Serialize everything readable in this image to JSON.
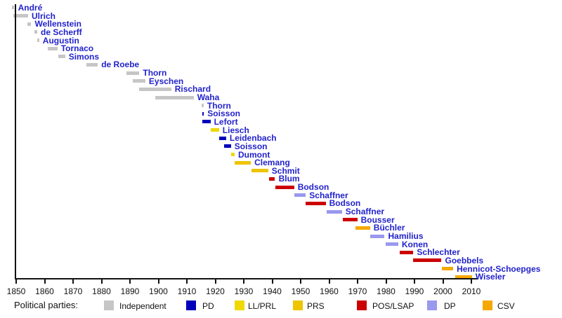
{
  "chart_data": {
    "type": "timeline",
    "title": "",
    "legend_title": "Political parties:",
    "x_axis": {
      "min": 1848,
      "max": 2011,
      "ticks": [
        1850,
        1860,
        1870,
        1880,
        1890,
        1900,
        1910,
        1920,
        1930,
        1940,
        1950,
        1960,
        1970,
        1980,
        1990,
        2000,
        2010
      ],
      "grid": false
    },
    "label_color": "#2222cc",
    "parties": {
      "ind": {
        "label": "Independent",
        "color": "#c6c6c6"
      },
      "pd": {
        "label": "PD",
        "color": "#0000bb"
      },
      "ll_prl": {
        "label": "LL/PRL",
        "color": "#efd900"
      },
      "prs": {
        "label": "PRS",
        "color": "#efc400"
      },
      "pos_lsap": {
        "label": "POS/LSAP",
        "color": "#cc0000"
      },
      "dp": {
        "label": "DP",
        "color": "#9999ee"
      },
      "csv": {
        "label": "CSV",
        "color": "#f5a800"
      }
    },
    "legend_order": [
      "ind",
      "pd",
      "ll_prl",
      "prs",
      "pos_lsap",
      "dp",
      "csv"
    ],
    "rows": [
      {
        "name": "André",
        "party": "ind",
        "start": 1848.6,
        "end": 1849.4
      },
      {
        "name": "Ulrich",
        "party": "ind",
        "start": 1848.9,
        "end": 1854.2
      },
      {
        "name": "Wellenstein",
        "party": "ind",
        "start": 1854.0,
        "end": 1855.3
      },
      {
        "name": "de Scherff",
        "party": "ind",
        "start": 1856.4,
        "end": 1857.4
      },
      {
        "name": "Augustin",
        "party": "ind",
        "start": 1857.4,
        "end": 1858.1
      },
      {
        "name": "Tornaco",
        "party": "ind",
        "start": 1861.1,
        "end": 1864.5
      },
      {
        "name": "Simons",
        "party": "ind",
        "start": 1864.9,
        "end": 1867.2
      },
      {
        "name": "de Roebe",
        "party": "ind",
        "start": 1874.6,
        "end": 1878.7
      },
      {
        "name": "Thorn",
        "party": "ind",
        "start": 1888.8,
        "end": 1893.3
      },
      {
        "name": "Eyschen",
        "party": "ind",
        "start": 1891.0,
        "end": 1895.4
      },
      {
        "name": "Rischard",
        "party": "ind",
        "start": 1893.3,
        "end": 1904.5
      },
      {
        "name": "Waha",
        "party": "ind",
        "start": 1899.0,
        "end": 1912.4
      },
      {
        "name": "Thorn",
        "party": "ind",
        "start": 1915.1,
        "end": 1915.9
      },
      {
        "name": "Soisson",
        "party": "pd",
        "start": 1915.3,
        "end": 1916.0
      },
      {
        "name": "Lefort",
        "party": "pd",
        "start": 1915.3,
        "end": 1918.3
      },
      {
        "name": "Liesch",
        "party": "ll_prl",
        "start": 1918.3,
        "end": 1921.3
      },
      {
        "name": "Leidenbach",
        "party": "pd",
        "start": 1921.3,
        "end": 1923.8
      },
      {
        "name": "Soisson",
        "party": "pd",
        "start": 1923.0,
        "end": 1925.5
      },
      {
        "name": "Dumont",
        "party": "ll_prl",
        "start": 1925.5,
        "end": 1926.8
      },
      {
        "name": "Clemang",
        "party": "prs",
        "start": 1926.8,
        "end": 1932.5
      },
      {
        "name": "Schmit",
        "party": "prs",
        "start": 1932.6,
        "end": 1938.6
      },
      {
        "name": "Blum",
        "party": "pos_lsap",
        "start": 1938.8,
        "end": 1941.0
      },
      {
        "name": "Bodson",
        "party": "pos_lsap",
        "start": 1941.0,
        "end": 1947.7
      },
      {
        "name": "Schaffner",
        "party": "dp",
        "start": 1947.7,
        "end": 1951.8
      },
      {
        "name": "Bodson",
        "party": "pos_lsap",
        "start": 1951.8,
        "end": 1958.8
      },
      {
        "name": "Schaffner",
        "party": "dp",
        "start": 1959.1,
        "end": 1964.5
      },
      {
        "name": "Bousser",
        "party": "pos_lsap",
        "start": 1964.9,
        "end": 1969.9
      },
      {
        "name": "Büchler",
        "party": "csv",
        "start": 1969.3,
        "end": 1974.4
      },
      {
        "name": "Hamilius",
        "party": "dp",
        "start": 1974.4,
        "end": 1979.5
      },
      {
        "name": "Konen",
        "party": "dp",
        "start": 1979.8,
        "end": 1984.3
      },
      {
        "name": "Schlechter",
        "party": "pos_lsap",
        "start": 1984.7,
        "end": 1989.6
      },
      {
        "name": "Goebbels",
        "party": "pos_lsap",
        "start": 1989.6,
        "end": 1999.5
      },
      {
        "name": "Hennicot-Schoepges",
        "party": "csv",
        "start": 1999.5,
        "end": 2003.6
      },
      {
        "name": "Wiseler",
        "party": "csv",
        "start": 2004.4,
        "end": 2010.2
      }
    ]
  }
}
